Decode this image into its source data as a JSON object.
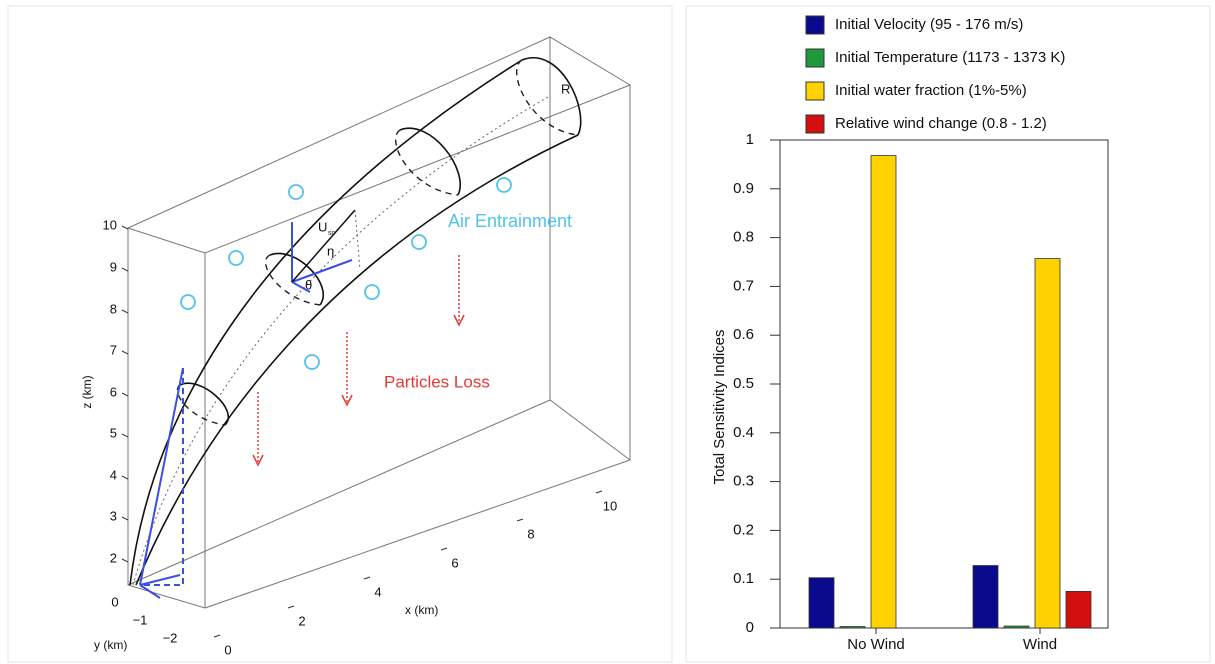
{
  "diagram": {
    "z_axis_label": "z (km)",
    "x_axis_label": "x (km)",
    "y_axis_label": "y (km)",
    "z_ticks": [
      "2",
      "3",
      "4",
      "5",
      "6",
      "7",
      "8",
      "9",
      "10"
    ],
    "x_ticks": [
      "0",
      "2",
      "4",
      "6",
      "8",
      "10"
    ],
    "y_ticks": [
      "0",
      "−1",
      "−2"
    ],
    "labels": {
      "air": "Air Entrainment",
      "loss": "Particles Loss",
      "radius": "R",
      "velocity": "U",
      "velocity_sub": "sc",
      "eta": "η",
      "theta": "θ"
    }
  },
  "chart_data": {
    "type": "bar",
    "ylabel": "Total Sensitivity Indices",
    "categories": [
      "No Wind",
      "Wind"
    ],
    "series": [
      {
        "name": "Initial Velocity (95 - 176 m/s)",
        "color": "#0a0a8c",
        "values": [
          0.103,
          0.128
        ]
      },
      {
        "name": "Initial Temperature (1173 - 1373 K)",
        "color": "#1e9a3c",
        "values": [
          0.003,
          0.004
        ]
      },
      {
        "name": "Initial water fraction (1%-5%)",
        "color": "#ffd200",
        "values": [
          0.968,
          0.757
        ]
      },
      {
        "name": "Relative wind change (0.8 - 1.2)",
        "color": "#d40f0f",
        "values": [
          0,
          0.075
        ]
      }
    ],
    "ylim": [
      0,
      1
    ],
    "yticks": [
      0,
      0.1,
      0.2,
      0.3,
      0.4,
      0.5,
      0.6,
      0.7,
      0.8,
      0.9,
      1
    ],
    "legend": "top"
  }
}
